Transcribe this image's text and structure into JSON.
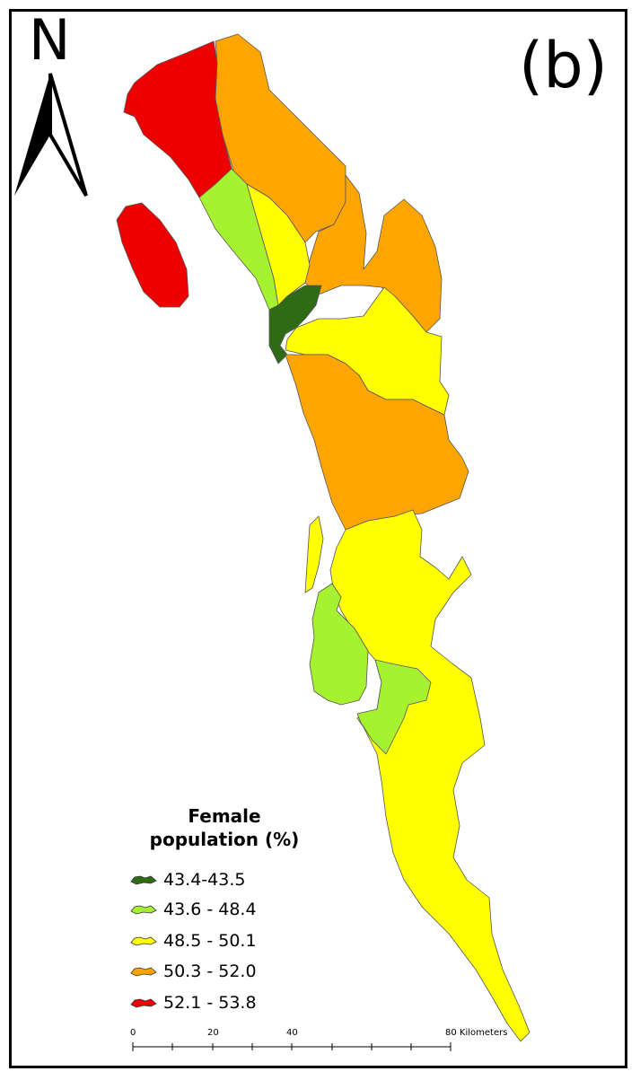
{
  "map": {
    "north_label": "N",
    "panel_label": "(b)",
    "legend": {
      "title_line1": "Female",
      "title_line2": "population (%)",
      "classes": [
        {
          "label": "43.4-43.5",
          "color": "#2e6b14"
        },
        {
          "label": "43.6 - 48.4",
          "color": "#a6f231"
        },
        {
          "label": "48.5 - 50.1",
          "color": "#ffff00"
        },
        {
          "label": "50.3 - 52.0",
          "color": "#ffa500"
        },
        {
          "label": "52.1 - 53.8",
          "color": "#ee0000"
        }
      ]
    },
    "scale_bar": {
      "tick_labels": [
        "0",
        "20",
        "40",
        "80 Kilometers"
      ]
    },
    "icons": {
      "north_arrow": "north-arrow-icon"
    }
  }
}
